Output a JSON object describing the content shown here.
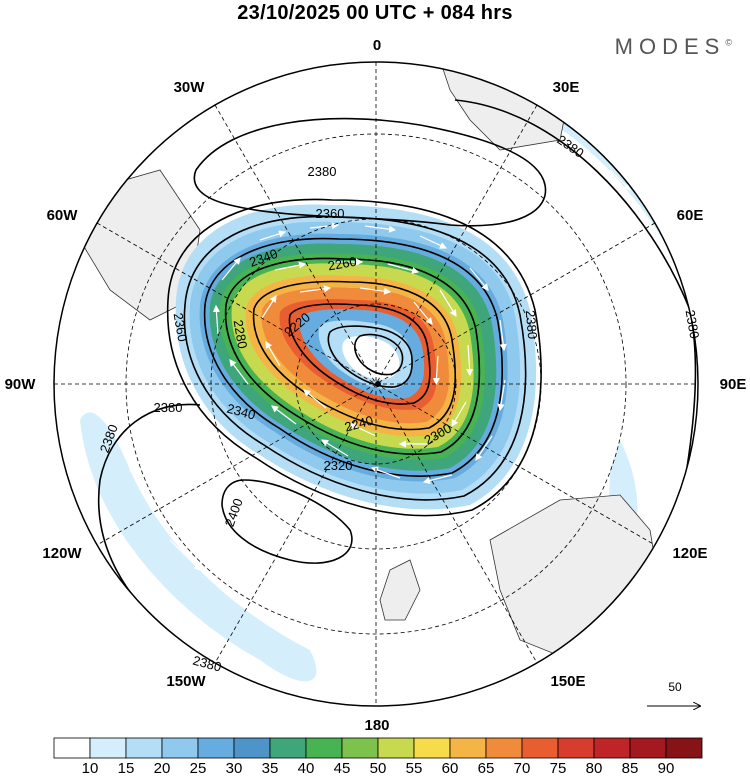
{
  "header": {
    "title": "23/10/2025  00 UTC  + 084 hrs",
    "brand": "MODES",
    "brand_mark": "©"
  },
  "map": {
    "projection": "south-polar-stereographic",
    "longitude_labels": [
      {
        "lon": 0,
        "text": "0"
      },
      {
        "lon": 30,
        "text": "30E"
      },
      {
        "lon": 60,
        "text": "60E"
      },
      {
        "lon": 90,
        "text": "90E"
      },
      {
        "lon": 120,
        "text": "120E"
      },
      {
        "lon": 150,
        "text": "150E"
      },
      {
        "lon": 180,
        "text": "180"
      },
      {
        "lon": -150,
        "text": "150W"
      },
      {
        "lon": -120,
        "text": "120W"
      },
      {
        "lon": -90,
        "text": "90W"
      },
      {
        "lon": -60,
        "text": "60W"
      },
      {
        "lon": -30,
        "text": "30W"
      }
    ],
    "contour_labels": [
      "2380",
      "2380",
      "2380",
      "2380",
      "2380",
      "2380",
      "2360",
      "2360",
      "2340",
      "2340",
      "2320",
      "2300",
      "2280",
      "2260",
      "2240",
      "2220",
      "2400",
      "2380"
    ],
    "colors": {
      "land": "#eeeeee",
      "coast": "#333333",
      "grid": "#000000",
      "contour": "#000000",
      "arrow": "#ffffff"
    }
  },
  "colorbar": {
    "ticks": [
      "10",
      "15",
      "20",
      "25",
      "30",
      "35",
      "40",
      "45",
      "50",
      "55",
      "60",
      "65",
      "70",
      "75",
      "80",
      "85",
      "90"
    ],
    "colors": [
      "#ffffff",
      "#d4eefb",
      "#b4def6",
      "#8fc9ee",
      "#67acdf",
      "#4e94c8",
      "#3fa67c",
      "#47b352",
      "#7dc24c",
      "#c7d94e",
      "#f6dc4a",
      "#f4b546",
      "#ef8b3a",
      "#e85e30",
      "#d83c2d",
      "#bf2428",
      "#a4191f",
      "#861316"
    ]
  },
  "vector_reference": {
    "value": "50"
  }
}
